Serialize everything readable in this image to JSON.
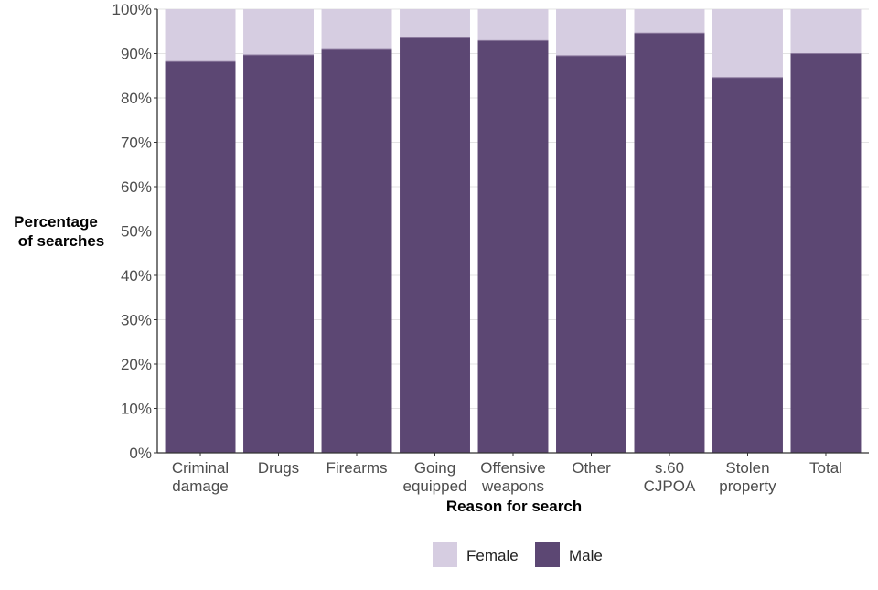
{
  "chart_data": {
    "type": "bar",
    "stacked": true,
    "xlabel": "Reason for search",
    "ylabel_lines": [
      "Percentage",
      "of searches"
    ],
    "categories": [
      [
        "Criminal",
        "damage"
      ],
      [
        "Drugs"
      ],
      [
        "Firearms"
      ],
      [
        "Going",
        "equipped"
      ],
      [
        "Offensive",
        "weapons"
      ],
      [
        "Other"
      ],
      [
        "s.60",
        "CJPOA"
      ],
      [
        "Stolen",
        "property"
      ],
      [
        "Total"
      ]
    ],
    "series": [
      {
        "name": "Male",
        "color": "#5c4773",
        "values": [
          88.2,
          89.7,
          90.9,
          93.7,
          92.9,
          89.5,
          94.6,
          84.6,
          90.0
        ]
      },
      {
        "name": "Female",
        "color": "#d6cde1",
        "values": [
          11.8,
          10.3,
          9.1,
          6.3,
          7.1,
          10.5,
          5.4,
          15.4,
          10.0
        ]
      }
    ],
    "yticks": [
      "0%",
      "10%",
      "20%",
      "30%",
      "40%",
      "50%",
      "60%",
      "70%",
      "80%",
      "90%",
      "100%"
    ],
    "ylim": [
      0,
      100
    ],
    "grid": true,
    "legend": {
      "position": "bottom",
      "entries": [
        "Female",
        "Male"
      ]
    }
  }
}
